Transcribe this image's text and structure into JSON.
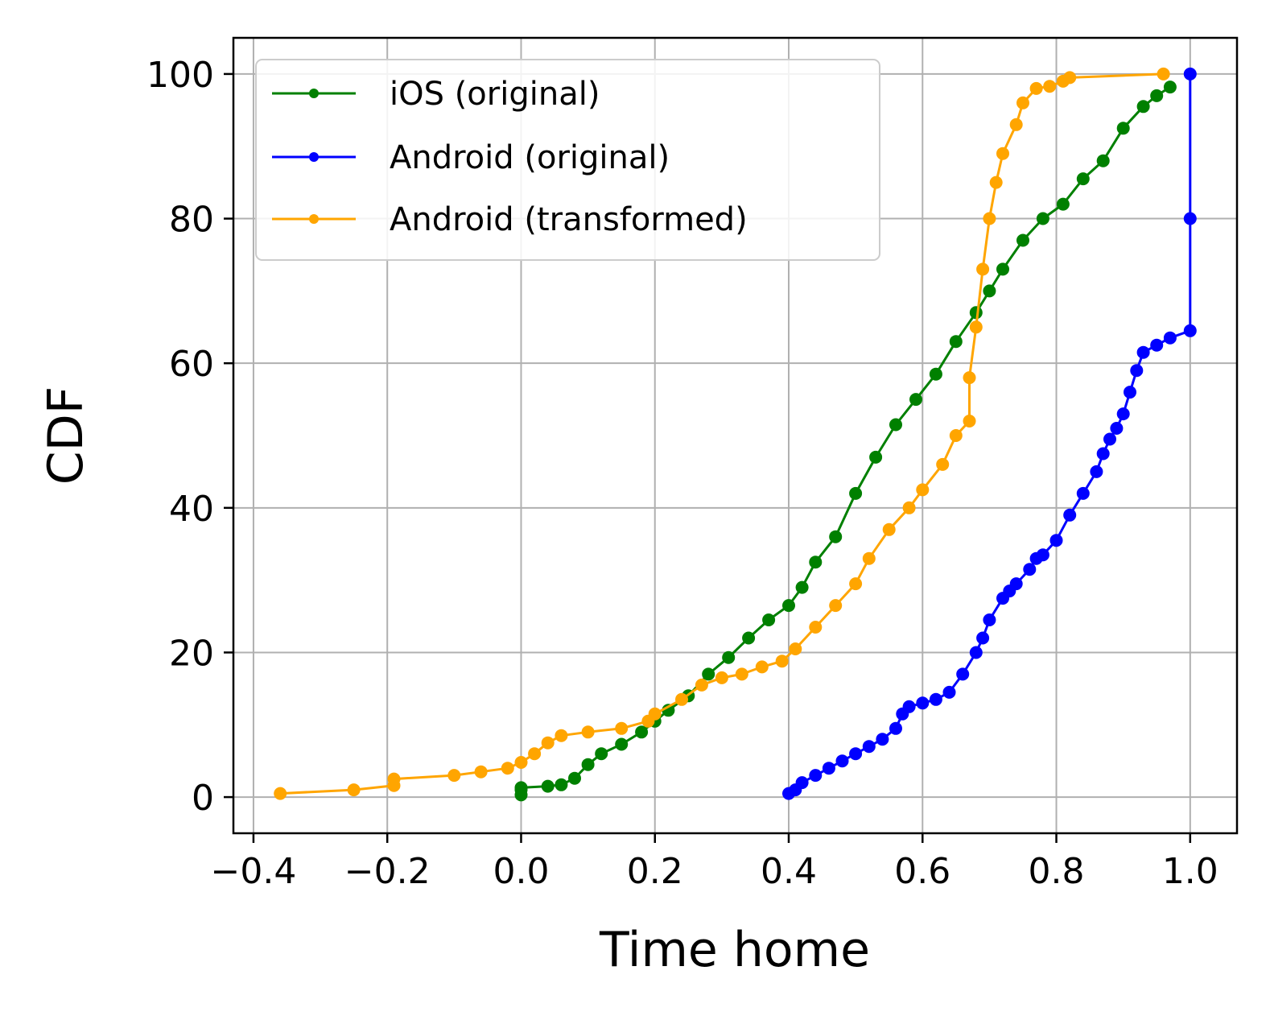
{
  "chart_data": {
    "type": "line",
    "title": "",
    "xlabel": "Time home",
    "ylabel": "CDF",
    "xlim": [
      -0.43,
      1.07
    ],
    "ylim": [
      -5,
      105
    ],
    "xticks": [
      -0.4,
      -0.2,
      0.0,
      0.2,
      0.4,
      0.6,
      0.8,
      1.0
    ],
    "xtick_labels": [
      "−0.4",
      "−0.2",
      "0.0",
      "0.2",
      "0.4",
      "0.6",
      "0.8",
      "1.0"
    ],
    "yticks": [
      0,
      20,
      40,
      60,
      80,
      100
    ],
    "ytick_labels": [
      "0",
      "20",
      "40",
      "60",
      "80",
      "100"
    ],
    "grid": true,
    "legend_position": "upper-left",
    "series": [
      {
        "name": "iOS (original)",
        "color": "#008000",
        "x": [
          0.0,
          0.0,
          0.0,
          0.04,
          0.06,
          0.08,
          0.1,
          0.12,
          0.15,
          0.18,
          0.2,
          0.22,
          0.25,
          0.28,
          0.31,
          0.34,
          0.37,
          0.4,
          0.42,
          0.44,
          0.47,
          0.5,
          0.53,
          0.56,
          0.59,
          0.62,
          0.65,
          0.68,
          0.7,
          0.72,
          0.75,
          0.78,
          0.81,
          0.84,
          0.87,
          0.9,
          0.93,
          0.95,
          0.97
        ],
        "y": [
          0.3,
          1.0,
          1.3,
          1.5,
          1.7,
          2.6,
          4.5,
          6.0,
          7.3,
          9.0,
          10.5,
          12.0,
          14.0,
          17.0,
          19.3,
          22.0,
          24.5,
          26.5,
          29.0,
          32.5,
          36.0,
          42.0,
          47.0,
          51.5,
          55.0,
          58.5,
          63.0,
          67.0,
          70.0,
          73.0,
          77.0,
          80.0,
          82.0,
          85.5,
          88.0,
          92.5,
          95.5,
          97.0,
          98.2
        ]
      },
      {
        "name": "Android (original)",
        "color": "#0000ff",
        "x": [
          0.4,
          0.41,
          0.42,
          0.44,
          0.46,
          0.48,
          0.5,
          0.52,
          0.54,
          0.56,
          0.57,
          0.58,
          0.6,
          0.62,
          0.64,
          0.66,
          0.68,
          0.69,
          0.7,
          0.72,
          0.73,
          0.74,
          0.76,
          0.77,
          0.78,
          0.8,
          0.82,
          0.84,
          0.86,
          0.87,
          0.88,
          0.89,
          0.9,
          0.91,
          0.92,
          0.93,
          0.95,
          0.97,
          1.0,
          1.0,
          1.0
        ],
        "y": [
          0.5,
          1.0,
          2.0,
          3.0,
          4.0,
          5.0,
          6.0,
          7.0,
          8.0,
          9.5,
          11.5,
          12.5,
          13.0,
          13.5,
          14.5,
          17.0,
          20.0,
          22.0,
          24.5,
          27.5,
          28.5,
          29.5,
          31.5,
          33.0,
          33.5,
          35.5,
          39.0,
          42.0,
          45.0,
          47.5,
          49.5,
          51.0,
          53.0,
          56.0,
          59.0,
          61.5,
          62.5,
          63.5,
          64.5,
          80.0,
          100.0
        ]
      },
      {
        "name": "Android (transformed)",
        "color": "#ffa500",
        "x": [
          -0.36,
          -0.25,
          -0.19,
          -0.19,
          -0.1,
          -0.06,
          -0.02,
          0.0,
          0.02,
          0.04,
          0.06,
          0.1,
          0.15,
          0.19,
          0.2,
          0.24,
          0.27,
          0.3,
          0.33,
          0.36,
          0.39,
          0.41,
          0.44,
          0.47,
          0.5,
          0.52,
          0.55,
          0.58,
          0.6,
          0.63,
          0.65,
          0.67,
          0.67,
          0.68,
          0.69,
          0.7,
          0.71,
          0.72,
          0.74,
          0.75,
          0.77,
          0.79,
          0.81,
          0.82,
          0.96
        ],
        "y": [
          0.5,
          1.0,
          1.6,
          2.5,
          3.0,
          3.5,
          4.0,
          4.8,
          6.0,
          7.5,
          8.5,
          9.0,
          9.5,
          10.5,
          11.5,
          13.5,
          15.5,
          16.5,
          17.0,
          18.0,
          18.8,
          20.5,
          23.5,
          26.5,
          29.5,
          33.0,
          37.0,
          40.0,
          42.5,
          46.0,
          50.0,
          52.0,
          58.0,
          65.0,
          73.0,
          80.0,
          85.0,
          89.0,
          93.0,
          96.0,
          98.0,
          98.3,
          99.0,
          99.5,
          100.0
        ]
      }
    ]
  }
}
